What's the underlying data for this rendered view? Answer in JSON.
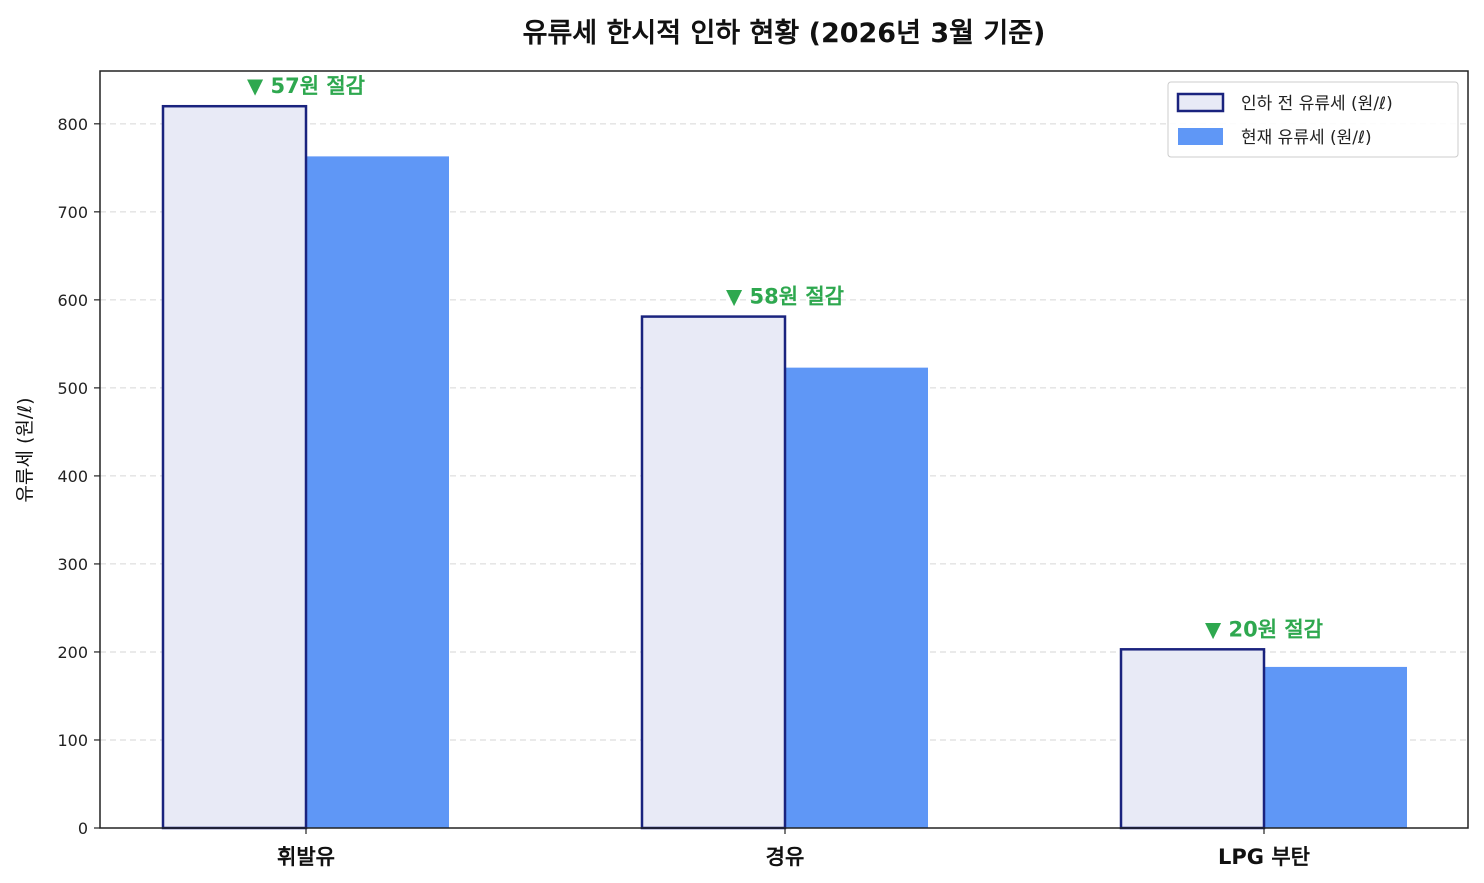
{
  "chart_data": {
    "type": "bar",
    "title": "유류세 한시적 인하 현황 (2026년 3월 기준)",
    "xlabel": "",
    "ylabel": "유류세 (원/ℓ)",
    "ylim": [
      0,
      860
    ],
    "yticks": [
      0,
      100,
      200,
      300,
      400,
      500,
      600,
      700,
      800
    ],
    "grid": true,
    "legend_position": "top-right",
    "categories": [
      "휘발유",
      "경유",
      "LPG 부탄"
    ],
    "series": [
      {
        "name": "인하 전 유류세 (원/ℓ)",
        "values": [
          820,
          581,
          203
        ],
        "fill": "#e8eaf6",
        "stroke": "#1a237e"
      },
      {
        "name": "현재 유류세 (원/ℓ)",
        "values": [
          763,
          523,
          183
        ],
        "fill": "#5f97f6",
        "stroke": "none"
      }
    ],
    "annotations": [
      "▼ 57원 절감",
      "▼ 58원 절감",
      "▼ 20원 절감"
    ],
    "annotation_color": "#2ea84f"
  }
}
